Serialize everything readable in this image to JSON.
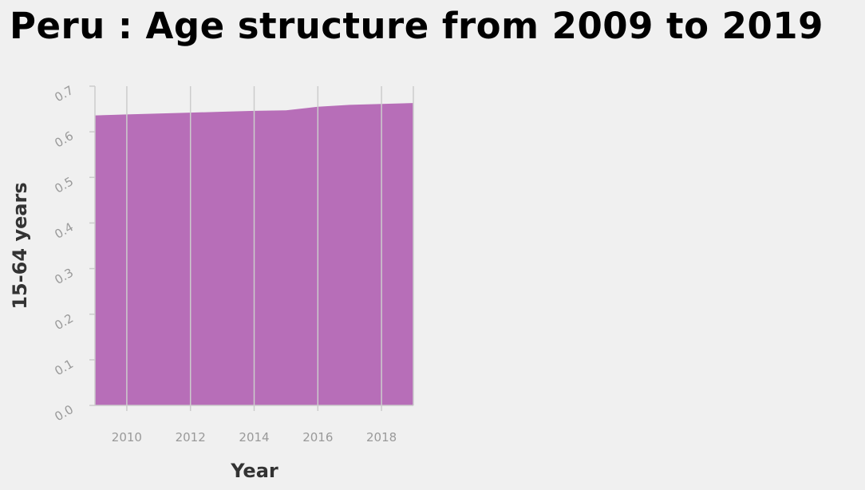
{
  "chart_data": {
    "type": "area",
    "title": "Peru : Age structure from 2009 to 2019",
    "xlabel": "Year",
    "ylabel": "15-64 years",
    "x": [
      2009,
      2010,
      2011,
      2012,
      2013,
      2014,
      2015,
      2016,
      2017,
      2018,
      2019
    ],
    "values": [
      0.636,
      0.638,
      0.64,
      0.642,
      0.644,
      0.646,
      0.647,
      0.655,
      0.659,
      0.661,
      0.663
    ],
    "xlim": [
      2009,
      2019
    ],
    "ylim": [
      0,
      0.7
    ],
    "x_ticks": [
      2010,
      2012,
      2014,
      2016,
      2018
    ],
    "y_ticks": [
      0.0,
      0.1,
      0.2,
      0.3,
      0.4,
      0.5,
      0.6,
      0.7
    ],
    "x_tick_labels": [
      "2010",
      "2012",
      "2014",
      "2016",
      "2018"
    ],
    "y_tick_labels": [
      "0.0",
      "0.1",
      "0.2",
      "0.3",
      "0.4",
      "0.5",
      "0.6",
      "0.7"
    ],
    "fill_color": "#b76eb8",
    "axis_color": "#cccccc",
    "grid": false,
    "legend": "none"
  }
}
